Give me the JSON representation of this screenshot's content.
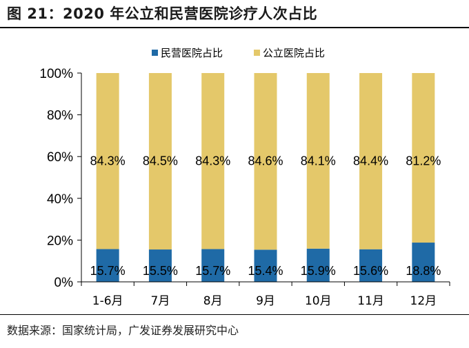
{
  "figure": {
    "title": "图 21：2020 年公立和民营医院诊疗人次占比",
    "source": "数据来源：国家统计局，广发证券发展研究中心"
  },
  "colors": {
    "private": "#1f6aa6",
    "public": "#e4c86a",
    "axis": "#000000"
  },
  "chart_data": {
    "type": "bar",
    "stacked": true,
    "categories": [
      "1-6月",
      "7月",
      "8月",
      "9月",
      "10月",
      "11月",
      "12月"
    ],
    "series": [
      {
        "name": "民营医院占比",
        "values": [
          15.7,
          15.5,
          15.7,
          15.4,
          15.9,
          15.6,
          18.8
        ],
        "labels": [
          "15.7%",
          "15.5%",
          "15.7%",
          "15.4%",
          "15.9%",
          "15.6%",
          "18.8%"
        ]
      },
      {
        "name": "公立医院占比",
        "values": [
          84.3,
          84.5,
          84.3,
          84.6,
          84.1,
          84.4,
          81.2
        ],
        "labels": [
          "84.3%",
          "84.5%",
          "84.3%",
          "84.6%",
          "84.1%",
          "84.4%",
          "81.2%"
        ]
      }
    ],
    "ylim": [
      0,
      100
    ],
    "yticks": [
      "0%",
      "20%",
      "40%",
      "60%",
      "80%",
      "100%"
    ],
    "ytick_values": [
      0,
      20,
      40,
      60,
      80,
      100
    ],
    "grid": false,
    "legend": "top-center"
  }
}
